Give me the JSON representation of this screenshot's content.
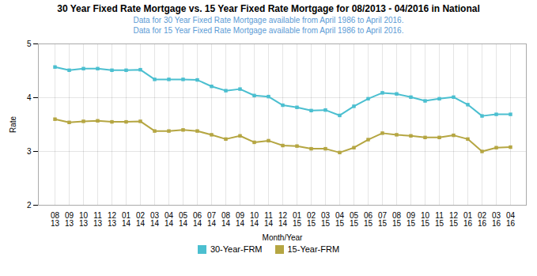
{
  "chart_data": {
    "type": "line",
    "title": "30 Year Fixed Rate Mortgage vs. 15 Year Fixed Rate Mortgage for 08/2013 - 04/2016 in National",
    "subtitle": [
      "Data for 30 Year Fixed Rate Mortgage available from April 1986 to April 2016.",
      "Data for 15 Year Fixed Rate Mortgage available from April 1986 to April 2016."
    ],
    "xlabel": "Month/Year",
    "ylabel": "Rate",
    "categories": [
      "08\n13",
      "09\n13",
      "10\n13",
      "11\n13",
      "12\n13",
      "01\n14",
      "02\n14",
      "03\n14",
      "04\n14",
      "05\n14",
      "06\n14",
      "07\n14",
      "08\n14",
      "09\n14",
      "10\n14",
      "11\n14",
      "12\n14",
      "01\n15",
      "02\n15",
      "03\n15",
      "04\n15",
      "05\n15",
      "06\n15",
      "07\n15",
      "08\n15",
      "09\n15",
      "10\n15",
      "11\n15",
      "12\n15",
      "01\n16",
      "02\n16",
      "03\n16",
      "04\n16"
    ],
    "series": [
      {
        "name": "30-Year-FRM",
        "color": "#4bbfd0",
        "marker": "square",
        "values": [
          4.57,
          4.51,
          4.54,
          4.54,
          4.51,
          4.51,
          4.52,
          4.34,
          4.34,
          4.34,
          4.33,
          4.21,
          4.13,
          4.16,
          4.04,
          4.02,
          3.86,
          3.82,
          3.76,
          3.77,
          3.67,
          3.84,
          3.98,
          4.09,
          4.07,
          4.01,
          3.94,
          3.98,
          4.01,
          3.87,
          3.66,
          3.69,
          3.69
        ]
      },
      {
        "name": "15-Year-FRM",
        "color": "#b5a642",
        "marker": "square",
        "values": [
          3.6,
          3.54,
          3.56,
          3.57,
          3.55,
          3.55,
          3.56,
          3.38,
          3.38,
          3.4,
          3.38,
          3.31,
          3.23,
          3.29,
          3.17,
          3.2,
          3.11,
          3.1,
          3.05,
          3.05,
          2.98,
          3.07,
          3.22,
          3.34,
          3.31,
          3.29,
          3.26,
          3.26,
          3.3,
          3.23,
          3.0,
          3.07,
          3.08
        ]
      }
    ],
    "ylim": [
      2,
      5
    ],
    "yticks": [
      2,
      3,
      4,
      5
    ],
    "grid": true,
    "legend": "bottom"
  }
}
